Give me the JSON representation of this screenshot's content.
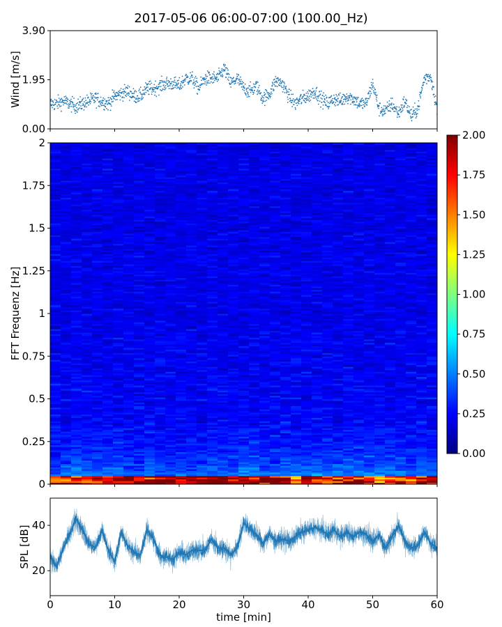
{
  "figure": {
    "title": "2017-05-06 06:00-07:00 (100.00_Hz)"
  },
  "chart_data": [
    {
      "type": "scatter",
      "panel": "wind",
      "ylabel": "Wind [m/s]",
      "xlim": [
        0,
        60
      ],
      "ylim": [
        0,
        3.9
      ],
      "yticks": [
        0.0,
        1.95,
        3.9
      ],
      "ytick_labels": [
        "0.00",
        "1.95",
        "3.90"
      ],
      "color": "#1f77b4",
      "x": [
        0,
        1,
        2,
        3,
        4,
        5,
        6,
        7,
        8,
        9,
        10,
        11,
        12,
        13,
        14,
        15,
        16,
        17,
        18,
        19,
        20,
        21,
        22,
        23,
        24,
        25,
        26,
        27,
        28,
        29,
        30,
        31,
        32,
        33,
        34,
        35,
        36,
        37,
        38,
        39,
        40,
        41,
        42,
        43,
        44,
        45,
        46,
        47,
        48,
        49,
        50,
        51,
        52,
        53,
        54,
        55,
        56,
        57,
        58,
        59,
        60
      ],
      "y": [
        1.0,
        1.0,
        1.1,
        1.0,
        0.9,
        1.0,
        1.1,
        1.2,
        1.1,
        1.0,
        1.3,
        1.4,
        1.5,
        1.3,
        1.3,
        1.6,
        1.6,
        1.7,
        1.8,
        1.8,
        1.7,
        2.0,
        2.0,
        1.6,
        2.0,
        2.0,
        2.0,
        2.4,
        1.8,
        2.0,
        1.6,
        1.5,
        1.7,
        1.2,
        1.4,
        1.9,
        1.8,
        1.3,
        1.0,
        1.2,
        1.3,
        1.5,
        1.2,
        1.0,
        1.2,
        1.1,
        1.3,
        1.2,
        1.0,
        1.0,
        1.8,
        0.8,
        0.7,
        1.0,
        0.6,
        1.1,
        0.5,
        0.8,
        2.0,
        2.1,
        0.8
      ]
    },
    {
      "type": "heatmap",
      "panel": "spectrogram",
      "ylabel": "FFT Frequenz [Hz]",
      "xlim": [
        0,
        60
      ],
      "ylim": [
        0,
        2
      ],
      "yticks": [
        0,
        0.25,
        0.5,
        0.75,
        1,
        1.25,
        1.5,
        1.75,
        2
      ],
      "ytick_labels": [
        "0",
        "0.25",
        "0.5",
        "0.75",
        "1",
        "1.25",
        "1.5",
        "1.75",
        "2"
      ],
      "colormap": "jet",
      "colorbar": {
        "range": [
          0,
          2
        ],
        "ticks": [
          "0.00",
          "0.25",
          "0.50",
          "0.75",
          "1.00",
          "1.25",
          "1.50",
          "1.75",
          "2.00"
        ]
      },
      "colorbar_stops": [
        "#00007f",
        "#0000ff",
        "#007fff",
        "#00ffff",
        "#7fff7f",
        "#ffff00",
        "#ff7f00",
        "#ff0000",
        "#7f0000"
      ],
      "typical_level_high_freq": 0.2,
      "typical_level_low_freq": 1.6
    },
    {
      "type": "line",
      "panel": "spl",
      "ylabel": "SPL [dB]",
      "xlabel": "time [min]",
      "xlim": [
        0,
        60
      ],
      "ylim": [
        9,
        52
      ],
      "xticks": [
        0,
        10,
        20,
        30,
        40,
        50,
        60
      ],
      "xtick_labels": [
        "0",
        "10",
        "20",
        "30",
        "40",
        "50",
        "60"
      ],
      "yticks": [
        20,
        40
      ],
      "ytick_labels": [
        "20",
        "40"
      ],
      "color": "#1f77b4",
      "x": [
        0,
        1,
        2,
        3,
        4,
        5,
        6,
        7,
        8,
        9,
        10,
        11,
        12,
        13,
        14,
        15,
        16,
        17,
        18,
        19,
        20,
        21,
        22,
        23,
        24,
        25,
        26,
        27,
        28,
        29,
        30,
        31,
        32,
        33,
        34,
        35,
        36,
        37,
        38,
        39,
        40,
        41,
        42,
        43,
        44,
        45,
        46,
        47,
        48,
        49,
        50,
        51,
        52,
        53,
        54,
        55,
        56,
        57,
        58,
        59,
        60
      ],
      "y": [
        26,
        22,
        30,
        36,
        43,
        38,
        32,
        30,
        38,
        29,
        24,
        37,
        31,
        28,
        27,
        38,
        34,
        27,
        26,
        25,
        28,
        27,
        29,
        29,
        29,
        34,
        30,
        30,
        27,
        30,
        41,
        38,
        36,
        32,
        36,
        33,
        34,
        33,
        35,
        37,
        38,
        39,
        38,
        36,
        38,
        35,
        37,
        35,
        37,
        36,
        33,
        36,
        30,
        35,
        40,
        33,
        30,
        31,
        37,
        32,
        30
      ]
    }
  ]
}
